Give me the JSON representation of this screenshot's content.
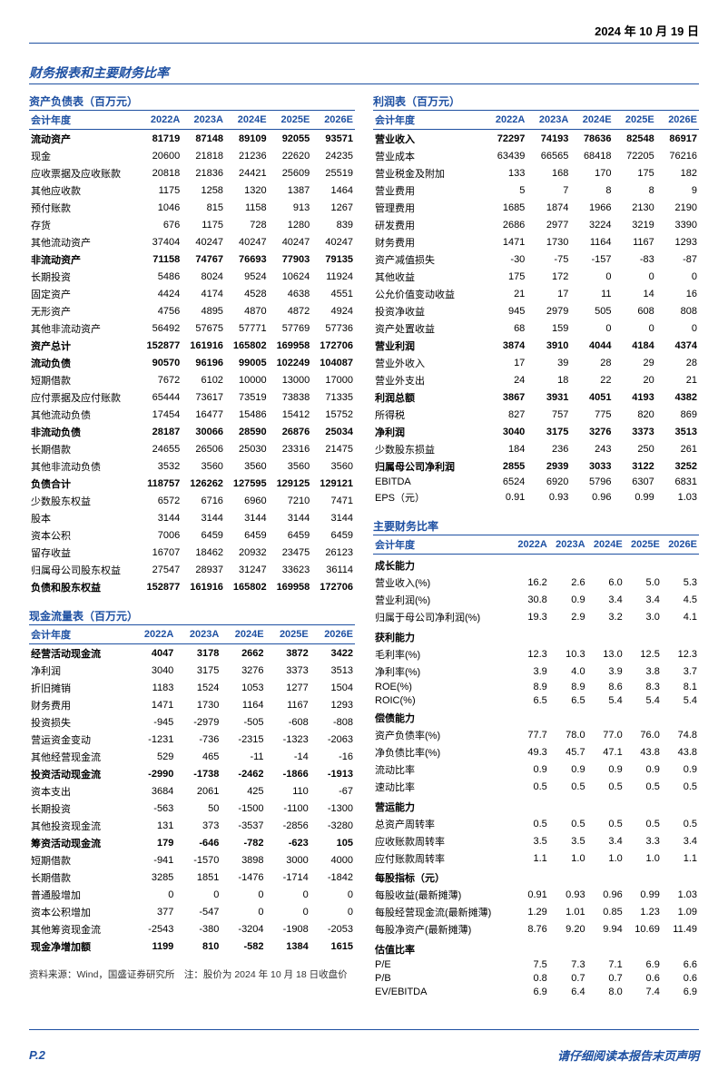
{
  "header": {
    "date": "2024 年 10 月 19 日"
  },
  "section_title": "财务报表和主要财务比率",
  "years": [
    "2022A",
    "2023A",
    "2024E",
    "2025E",
    "2026E"
  ],
  "year_label": "会计年度",
  "colors": {
    "brand": "#1e50a2",
    "text": "#000000",
    "rule": "#1e50a2",
    "background": "#ffffff"
  },
  "typography": {
    "base_fontsize_pt": 8,
    "title_fontsize_pt": 10,
    "header_fontsize_pt": 9
  },
  "tables": {
    "balance_sheet": {
      "title": "资产负债表（百万元）",
      "rows": [
        {
          "label": "流动资产",
          "vals": [
            "81719",
            "87148",
            "89109",
            "92055",
            "93571"
          ],
          "bold": true
        },
        {
          "label": "现金",
          "vals": [
            "20600",
            "21818",
            "21236",
            "22620",
            "24235"
          ]
        },
        {
          "label": "应收票据及应收账款",
          "vals": [
            "20818",
            "21836",
            "24421",
            "25609",
            "25519"
          ]
        },
        {
          "label": "其他应收款",
          "vals": [
            "1175",
            "1258",
            "1320",
            "1387",
            "1464"
          ]
        },
        {
          "label": "预付账款",
          "vals": [
            "1046",
            "815",
            "1158",
            "913",
            "1267"
          ]
        },
        {
          "label": "存货",
          "vals": [
            "676",
            "1175",
            "728",
            "1280",
            "839"
          ]
        },
        {
          "label": "其他流动资产",
          "vals": [
            "37404",
            "40247",
            "40247",
            "40247",
            "40247"
          ]
        },
        {
          "label": "非流动资产",
          "vals": [
            "71158",
            "74767",
            "76693",
            "77903",
            "79135"
          ],
          "bold": true
        },
        {
          "label": "长期投资",
          "vals": [
            "5486",
            "8024",
            "9524",
            "10624",
            "11924"
          ]
        },
        {
          "label": "固定资产",
          "vals": [
            "4424",
            "4174",
            "4528",
            "4638",
            "4551"
          ]
        },
        {
          "label": "无形资产",
          "vals": [
            "4756",
            "4895",
            "4870",
            "4872",
            "4924"
          ]
        },
        {
          "label": "其他非流动资产",
          "vals": [
            "56492",
            "57675",
            "57771",
            "57769",
            "57736"
          ]
        },
        {
          "label": "资产总计",
          "vals": [
            "152877",
            "161916",
            "165802",
            "169958",
            "172706"
          ],
          "bold": true
        },
        {
          "label": "流动负债",
          "vals": [
            "90570",
            "96196",
            "99005",
            "102249",
            "104087"
          ],
          "bold": true
        },
        {
          "label": "短期借款",
          "vals": [
            "7672",
            "6102",
            "10000",
            "13000",
            "17000"
          ]
        },
        {
          "label": "应付票据及应付账款",
          "vals": [
            "65444",
            "73617",
            "73519",
            "73838",
            "71335"
          ]
        },
        {
          "label": "其他流动负债",
          "vals": [
            "17454",
            "16477",
            "15486",
            "15412",
            "15752"
          ]
        },
        {
          "label": "非流动负债",
          "vals": [
            "28187",
            "30066",
            "28590",
            "26876",
            "25034"
          ],
          "bold": true
        },
        {
          "label": "长期借款",
          "vals": [
            "24655",
            "26506",
            "25030",
            "23316",
            "21475"
          ]
        },
        {
          "label": "其他非流动负债",
          "vals": [
            "3532",
            "3560",
            "3560",
            "3560",
            "3560"
          ]
        },
        {
          "label": "负债合计",
          "vals": [
            "118757",
            "126262",
            "127595",
            "129125",
            "129121"
          ],
          "bold": true
        },
        {
          "label": "少数股东权益",
          "vals": [
            "6572",
            "6716",
            "6960",
            "7210",
            "7471"
          ]
        },
        {
          "label": "股本",
          "vals": [
            "3144",
            "3144",
            "3144",
            "3144",
            "3144"
          ]
        },
        {
          "label": "资本公积",
          "vals": [
            "7006",
            "6459",
            "6459",
            "6459",
            "6459"
          ]
        },
        {
          "label": "留存收益",
          "vals": [
            "16707",
            "18462",
            "20932",
            "23475",
            "26123"
          ]
        },
        {
          "label": "归属母公司股东权益",
          "vals": [
            "27547",
            "28937",
            "31247",
            "33623",
            "36114"
          ]
        },
        {
          "label": "负债和股东权益",
          "vals": [
            "152877",
            "161916",
            "165802",
            "169958",
            "172706"
          ],
          "bold": true
        }
      ]
    },
    "cash_flow": {
      "title": "现金流量表（百万元）",
      "rows": [
        {
          "label": "经营活动现金流",
          "vals": [
            "4047",
            "3178",
            "2662",
            "3872",
            "3422"
          ],
          "bold": true
        },
        {
          "label": "净利润",
          "vals": [
            "3040",
            "3175",
            "3276",
            "3373",
            "3513"
          ]
        },
        {
          "label": "折旧摊销",
          "vals": [
            "1183",
            "1524",
            "1053",
            "1277",
            "1504"
          ]
        },
        {
          "label": "财务费用",
          "vals": [
            "1471",
            "1730",
            "1164",
            "1167",
            "1293"
          ]
        },
        {
          "label": "投资损失",
          "vals": [
            "-945",
            "-2979",
            "-505",
            "-608",
            "-808"
          ]
        },
        {
          "label": "营运资金变动",
          "vals": [
            "-1231",
            "-736",
            "-2315",
            "-1323",
            "-2063"
          ]
        },
        {
          "label": "其他经营现金流",
          "vals": [
            "529",
            "465",
            "-11",
            "-14",
            "-16"
          ]
        },
        {
          "label": "投资活动现金流",
          "vals": [
            "-2990",
            "-1738",
            "-2462",
            "-1866",
            "-1913"
          ],
          "bold": true
        },
        {
          "label": "资本支出",
          "vals": [
            "3684",
            "2061",
            "425",
            "110",
            "-67"
          ]
        },
        {
          "label": "长期投资",
          "vals": [
            "-563",
            "50",
            "-1500",
            "-1100",
            "-1300"
          ]
        },
        {
          "label": "其他投资现金流",
          "vals": [
            "131",
            "373",
            "-3537",
            "-2856",
            "-3280"
          ]
        },
        {
          "label": "筹资活动现金流",
          "vals": [
            "179",
            "-646",
            "-782",
            "-623",
            "105"
          ],
          "bold": true
        },
        {
          "label": "短期借款",
          "vals": [
            "-941",
            "-1570",
            "3898",
            "3000",
            "4000"
          ]
        },
        {
          "label": "长期借款",
          "vals": [
            "3285",
            "1851",
            "-1476",
            "-1714",
            "-1842"
          ]
        },
        {
          "label": "普通股增加",
          "vals": [
            "0",
            "0",
            "0",
            "0",
            "0"
          ]
        },
        {
          "label": "资本公积增加",
          "vals": [
            "377",
            "-547",
            "0",
            "0",
            "0"
          ]
        },
        {
          "label": "其他筹资现金流",
          "vals": [
            "-2543",
            "-380",
            "-3204",
            "-1908",
            "-2053"
          ]
        },
        {
          "label": "现金净增加额",
          "vals": [
            "1199",
            "810",
            "-582",
            "1384",
            "1615"
          ],
          "bold": true
        }
      ]
    },
    "income_statement": {
      "title": "利润表（百万元）",
      "rows": [
        {
          "label": "营业收入",
          "vals": [
            "72297",
            "74193",
            "78636",
            "82548",
            "86917"
          ],
          "bold": true
        },
        {
          "label": "营业成本",
          "vals": [
            "63439",
            "66565",
            "68418",
            "72205",
            "76216"
          ]
        },
        {
          "label": "营业税金及附加",
          "vals": [
            "133",
            "168",
            "170",
            "175",
            "182"
          ]
        },
        {
          "label": "营业费用",
          "vals": [
            "5",
            "7",
            "8",
            "8",
            "9"
          ]
        },
        {
          "label": "管理费用",
          "vals": [
            "1685",
            "1874",
            "1966",
            "2130",
            "2190"
          ]
        },
        {
          "label": "研发费用",
          "vals": [
            "2686",
            "2977",
            "3224",
            "3219",
            "3390"
          ]
        },
        {
          "label": "财务费用",
          "vals": [
            "1471",
            "1730",
            "1164",
            "1167",
            "1293"
          ]
        },
        {
          "label": "资产减值损失",
          "vals": [
            "-30",
            "-75",
            "-157",
            "-83",
            "-87"
          ]
        },
        {
          "label": "其他收益",
          "vals": [
            "175",
            "172",
            "0",
            "0",
            "0"
          ]
        },
        {
          "label": "公允价值变动收益",
          "vals": [
            "21",
            "17",
            "11",
            "14",
            "16"
          ]
        },
        {
          "label": "投资净收益",
          "vals": [
            "945",
            "2979",
            "505",
            "608",
            "808"
          ]
        },
        {
          "label": "资产处置收益",
          "vals": [
            "68",
            "159",
            "0",
            "0",
            "0"
          ]
        },
        {
          "label": "营业利润",
          "vals": [
            "3874",
            "3910",
            "4044",
            "4184",
            "4374"
          ],
          "bold": true
        },
        {
          "label": "营业外收入",
          "vals": [
            "17",
            "39",
            "28",
            "29",
            "28"
          ]
        },
        {
          "label": "营业外支出",
          "vals": [
            "24",
            "18",
            "22",
            "20",
            "21"
          ]
        },
        {
          "label": "利润总额",
          "vals": [
            "3867",
            "3931",
            "4051",
            "4193",
            "4382"
          ],
          "bold": true
        },
        {
          "label": "所得税",
          "vals": [
            "827",
            "757",
            "775",
            "820",
            "869"
          ]
        },
        {
          "label": "净利润",
          "vals": [
            "3040",
            "3175",
            "3276",
            "3373",
            "3513"
          ],
          "bold": true
        },
        {
          "label": "少数股东损益",
          "vals": [
            "184",
            "236",
            "243",
            "250",
            "261"
          ]
        },
        {
          "label": "归属母公司净利润",
          "vals": [
            "2855",
            "2939",
            "3033",
            "3122",
            "3252"
          ],
          "bold": true
        },
        {
          "label": "EBITDA",
          "vals": [
            "6524",
            "6920",
            "5796",
            "6307",
            "6831"
          ]
        },
        {
          "label": "EPS（元）",
          "vals": [
            "0.91",
            "0.93",
            "0.96",
            "0.99",
            "1.03"
          ]
        }
      ]
    },
    "ratios": {
      "title": "主要财务比率",
      "rows": [
        {
          "label": "成长能力",
          "subhead": true
        },
        {
          "label": "营业收入(%)",
          "vals": [
            "16.2",
            "2.6",
            "6.0",
            "5.0",
            "5.3"
          ]
        },
        {
          "label": "营业利润(%)",
          "vals": [
            "30.8",
            "0.9",
            "3.4",
            "3.4",
            "4.5"
          ]
        },
        {
          "label": "归属于母公司净利润(%)",
          "vals": [
            "19.3",
            "2.9",
            "3.2",
            "3.0",
            "4.1"
          ]
        },
        {
          "label": "获利能力",
          "subhead": true
        },
        {
          "label": "毛利率(%)",
          "vals": [
            "12.3",
            "10.3",
            "13.0",
            "12.5",
            "12.3"
          ]
        },
        {
          "label": "净利率(%)",
          "vals": [
            "3.9",
            "4.0",
            "3.9",
            "3.8",
            "3.7"
          ]
        },
        {
          "label": "ROE(%)",
          "vals": [
            "8.9",
            "8.9",
            "8.6",
            "8.3",
            "8.1"
          ]
        },
        {
          "label": "ROIC(%)",
          "vals": [
            "6.5",
            "6.5",
            "5.4",
            "5.4",
            "5.4"
          ]
        },
        {
          "label": "偿债能力",
          "subhead": true
        },
        {
          "label": "资产负债率(%)",
          "vals": [
            "77.7",
            "78.0",
            "77.0",
            "76.0",
            "74.8"
          ]
        },
        {
          "label": "净负债比率(%)",
          "vals": [
            "49.3",
            "45.7",
            "47.1",
            "43.8",
            "43.8"
          ]
        },
        {
          "label": "流动比率",
          "vals": [
            "0.9",
            "0.9",
            "0.9",
            "0.9",
            "0.9"
          ]
        },
        {
          "label": "速动比率",
          "vals": [
            "0.5",
            "0.5",
            "0.5",
            "0.5",
            "0.5"
          ]
        },
        {
          "label": "营运能力",
          "subhead": true
        },
        {
          "label": "总资产周转率",
          "vals": [
            "0.5",
            "0.5",
            "0.5",
            "0.5",
            "0.5"
          ]
        },
        {
          "label": "应收账款周转率",
          "vals": [
            "3.5",
            "3.5",
            "3.4",
            "3.3",
            "3.4"
          ]
        },
        {
          "label": "应付账款周转率",
          "vals": [
            "1.1",
            "1.0",
            "1.0",
            "1.0",
            "1.1"
          ]
        },
        {
          "label": "每股指标（元）",
          "subhead": true
        },
        {
          "label": "每股收益(最新摊薄)",
          "vals": [
            "0.91",
            "0.93",
            "0.96",
            "0.99",
            "1.03"
          ]
        },
        {
          "label": "每股经营现金流(最新摊薄)",
          "vals": [
            "1.29",
            "1.01",
            "0.85",
            "1.23",
            "1.09"
          ]
        },
        {
          "label": "每股净资产(最新摊薄)",
          "vals": [
            "8.76",
            "9.20",
            "9.94",
            "10.69",
            "11.49"
          ]
        },
        {
          "label": "估值比率",
          "subhead": true
        },
        {
          "label": "P/E",
          "vals": [
            "7.5",
            "7.3",
            "7.1",
            "6.9",
            "6.6"
          ]
        },
        {
          "label": "P/B",
          "vals": [
            "0.8",
            "0.7",
            "0.7",
            "0.6",
            "0.6"
          ]
        },
        {
          "label": "EV/EBITDA",
          "vals": [
            "6.9",
            "6.4",
            "8.0",
            "7.4",
            "6.9"
          ]
        }
      ]
    }
  },
  "source": "资料来源：Wind，国盛证券研究所　注：股价为 2024 年 10 月 18 日收盘价",
  "footer": {
    "page": "P.2",
    "disclaimer": "请仔细阅读本报告末页声明"
  }
}
